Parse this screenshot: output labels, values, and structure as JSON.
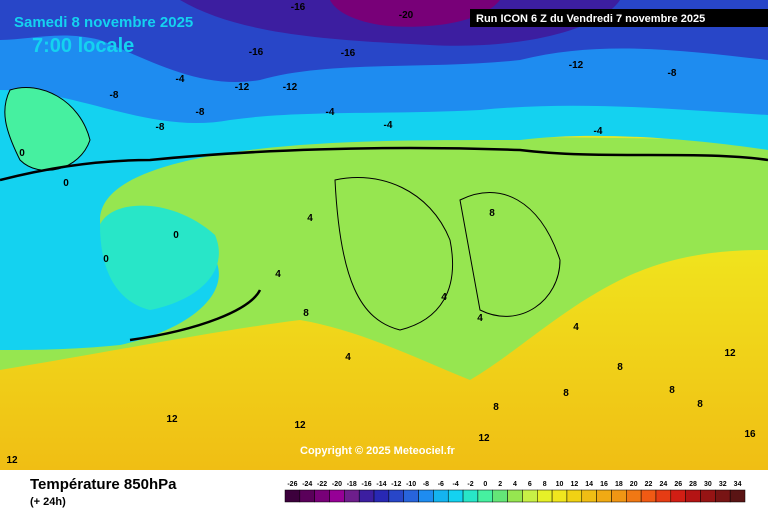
{
  "header": {
    "date": "Samedi 8 novembre 2025",
    "time": "7:00 locale",
    "run": "Run ICON 6 Z du Vendredi 7 novembre 2025",
    "copyright": "Copyright © 2025 Meteociel.fr"
  },
  "footer": {
    "title": "Température 850hPa",
    "subtitle": "(+ 24h)"
  },
  "legend": {
    "ticks": [
      -26,
      -24,
      -22,
      -20,
      -18,
      -16,
      -14,
      -12,
      -10,
      -8,
      -6,
      -4,
      -2,
      0,
      2,
      4,
      6,
      8,
      10,
      12,
      14,
      16,
      18,
      20,
      22,
      24,
      26,
      28,
      30,
      32,
      34
    ],
    "colors": [
      "#3c003c",
      "#5a005a",
      "#780078",
      "#960096",
      "#6e1e8c",
      "#3c1ea0",
      "#2828b4",
      "#2846c8",
      "#2864dc",
      "#1e8cf0",
      "#14b4f0",
      "#14d2f0",
      "#28e6c8",
      "#46f0a0",
      "#64e678",
      "#96e650",
      "#c8f046",
      "#e6f028",
      "#f0e61e",
      "#f0d214",
      "#f0be14",
      "#f0aa14",
      "#f09614",
      "#f07814",
      "#f05a14",
      "#e63c14",
      "#d21e14",
      "#b41414",
      "#961414",
      "#781414",
      "#5a1414"
    ]
  },
  "map_labels": [
    -16,
    -20,
    -16,
    -16,
    -12,
    -12,
    -8,
    -8,
    -4,
    -4,
    -4,
    0,
    0,
    0,
    0,
    4,
    4,
    4,
    4,
    4,
    4,
    8,
    8,
    8,
    8,
    8,
    8,
    8,
    12,
    12,
    12,
    12,
    12,
    16,
    -12,
    -8,
    -4,
    -8
  ]
}
